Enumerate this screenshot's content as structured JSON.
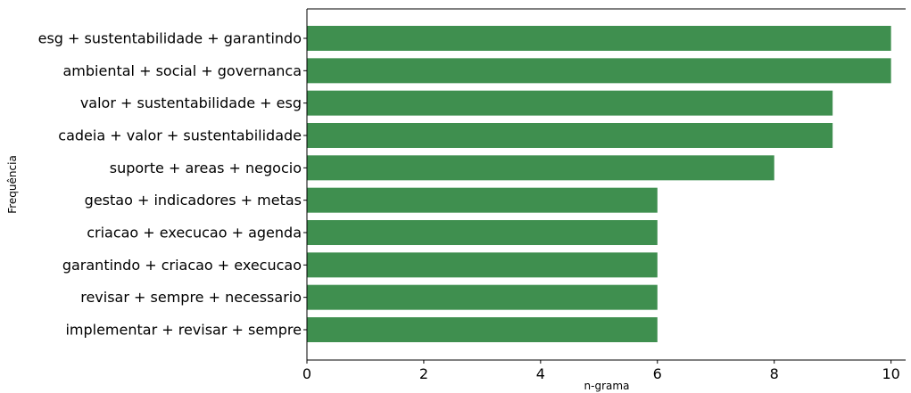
{
  "chart_data": {
    "type": "bar",
    "orientation": "horizontal",
    "title": "",
    "xlabel": "n-grama",
    "ylabel": "Frequência",
    "xlim": [
      0,
      10.25
    ],
    "xticks": [
      0,
      2,
      4,
      6,
      8,
      10
    ],
    "grid": false,
    "bar_color": "#3f8f4f",
    "categories": [
      "esg + sustentabilidade + garantindo",
      "ambiental + social + governanca",
      "valor + sustentabilidade + esg",
      "cadeia + valor + sustentabilidade",
      "suporte + areas + negocio",
      "gestao + indicadores + metas",
      "criacao + execucao + agenda",
      "garantindo + criacao + execucao",
      "revisar + sempre + necessario",
      "implementar + revisar + sempre"
    ],
    "values": [
      10,
      10,
      9,
      9,
      8,
      6,
      6,
      6,
      6,
      6
    ]
  }
}
